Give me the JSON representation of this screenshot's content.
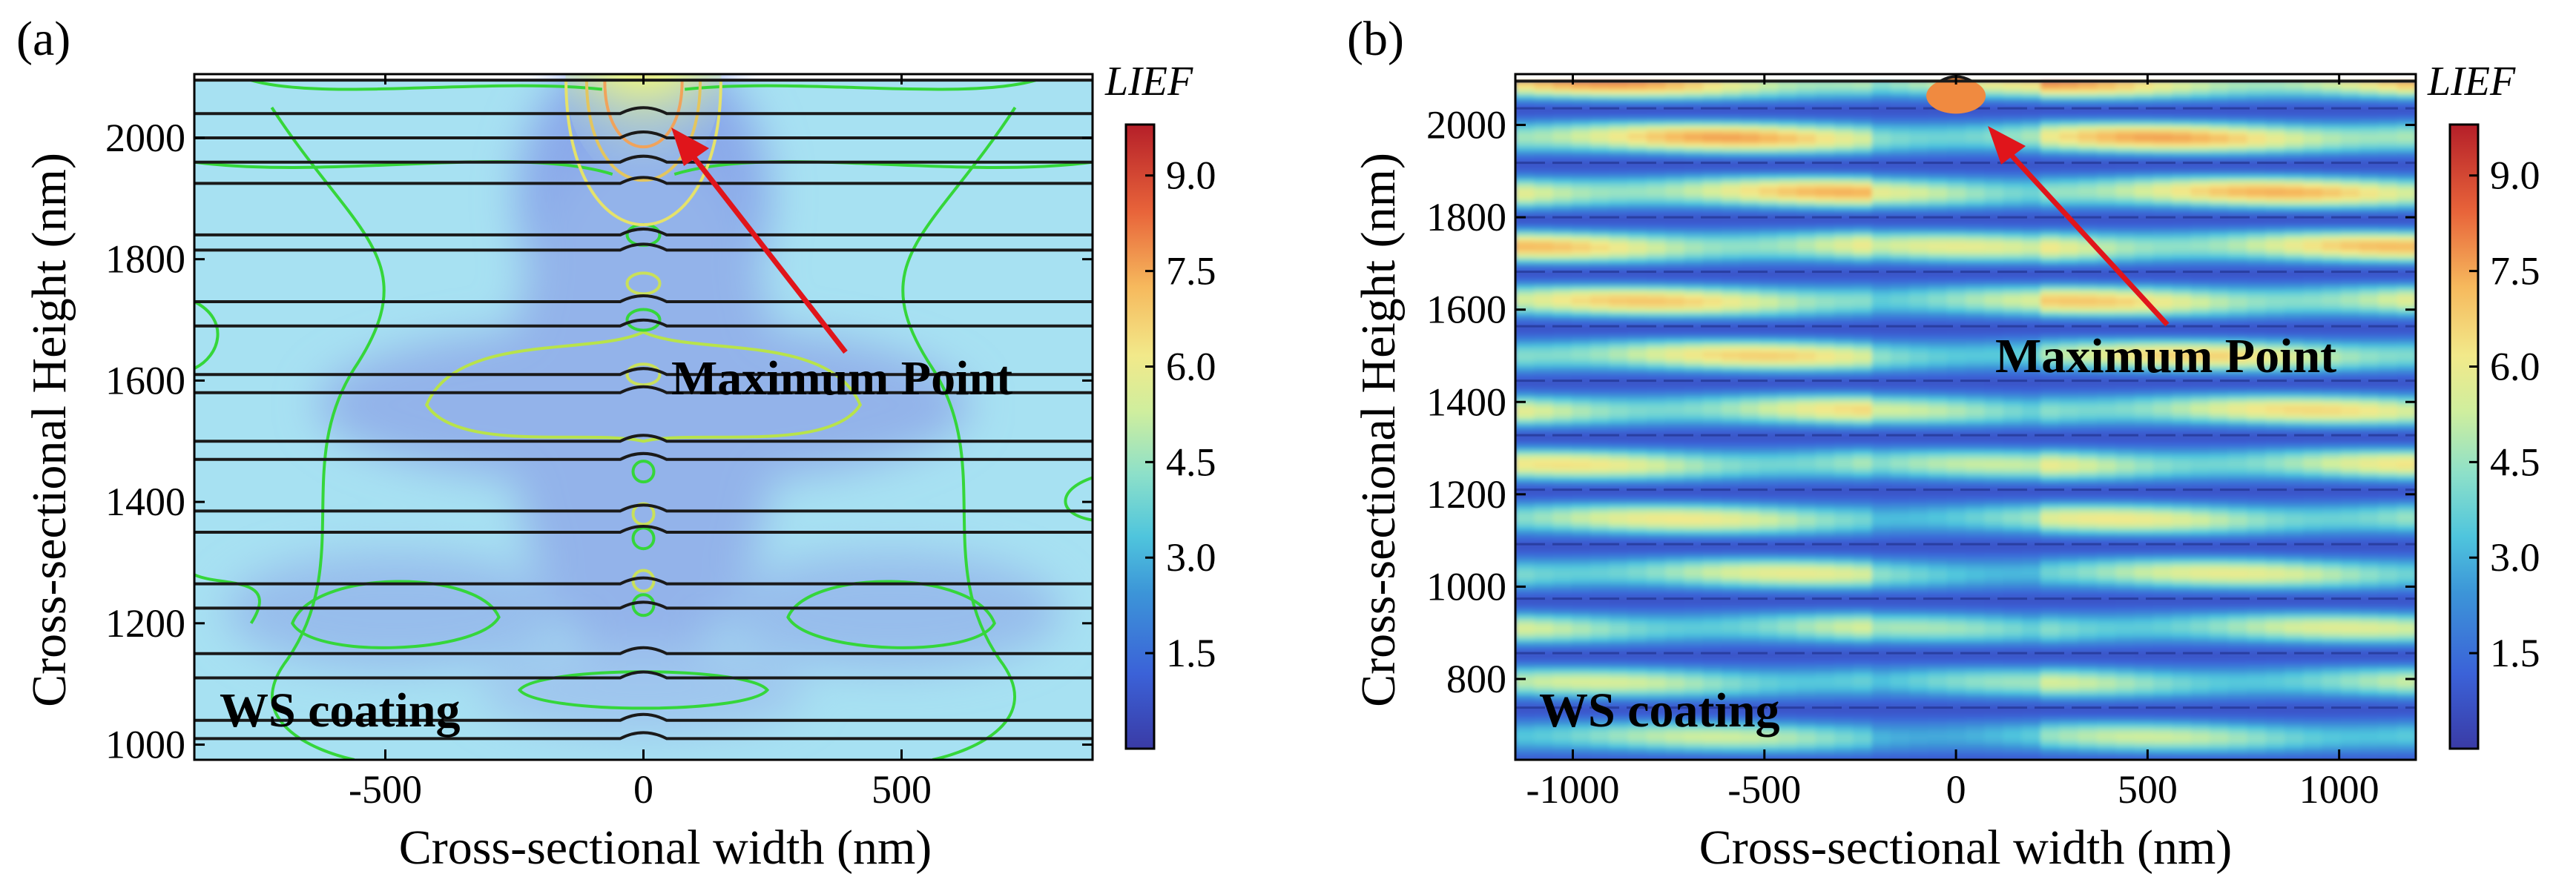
{
  "chart_data": [
    {
      "type": "heatmap",
      "panel_label": "(a)",
      "xlabel": "Cross-sectional width (nm)",
      "ylabel": "Cross-sectional Height (nm)",
      "xlim": [
        -870,
        870
      ],
      "ylim": [
        975,
        2105
      ],
      "xticks": [
        -500,
        0,
        500
      ],
      "yticks": [
        1000,
        1200,
        1400,
        1600,
        1800,
        2000
      ],
      "colorbar": {
        "title": "LIEF",
        "ticks": [
          1.5,
          3.0,
          4.5,
          6.0,
          7.5,
          9.0
        ],
        "range": [
          0,
          9.8
        ],
        "colormap": "jet"
      },
      "field": {
        "top": 2095,
        "background_value": 3.2,
        "maximum_value": 9.8,
        "maximum_point": [
          0,
          2090
        ]
      },
      "layer_interfaces": [
        2040,
        2000,
        1960,
        1925,
        1840,
        1815,
        1730,
        1690,
        1610,
        1580,
        1500,
        1470,
        1385,
        1350,
        1265,
        1225,
        1150,
        1110,
        1040,
        1010
      ],
      "annotations": {
        "maximum_label": "Maximum Point",
        "coating_label": "WS coating"
      }
    },
    {
      "type": "heatmap",
      "panel_label": "(b)",
      "xlabel": "Cross-sectional width (nm)",
      "ylabel": "Cross-sectional Height (nm)",
      "xlim": [
        -1150,
        1200
      ],
      "ylim": [
        625,
        2110
      ],
      "xticks": [
        -1000,
        -500,
        0,
        500,
        1000
      ],
      "yticks": [
        800,
        1000,
        1200,
        1400,
        1600,
        1800,
        2000
      ],
      "colorbar": {
        "title": "LIEF",
        "ticks": [
          1.5,
          3.0,
          4.5,
          6.0,
          7.5,
          9.0
        ],
        "range": [
          0,
          9.8
        ],
        "colormap": "jet"
      },
      "field": {
        "top": 2095,
        "fringe_period_nm": 118,
        "peak_value": 8.2,
        "maximum_point": [
          0,
          2090
        ]
      },
      "annotations": {
        "maximum_label": "Maximum Point",
        "coating_label": "WS coating"
      }
    }
  ]
}
